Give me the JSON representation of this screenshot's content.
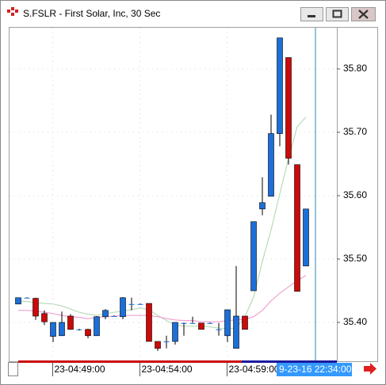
{
  "window_title": "S.FSLR - First Solar, Inc, 30 Sec",
  "chart_data": {
    "type": "candlestick",
    "categories": [
      null,
      null,
      null,
      null,
      "23-04:49:00",
      null,
      null,
      null,
      null,
      null,
      null,
      null,
      null,
      null,
      "23-04:54:00",
      null,
      null,
      null,
      null,
      null,
      null,
      null,
      null,
      null,
      "23-04:59:00",
      null,
      null,
      null,
      null,
      null,
      null,
      null,
      null,
      null
    ],
    "open": [
      35.429,
      35.439,
      35.438,
      35.414,
      35.378,
      35.379,
      35.41,
      35.389,
      35.389,
      35.379,
      35.409,
      35.41,
      35.409,
      35.429,
      35.429,
      35.43,
      35.37,
      35.37,
      35.37,
      35.399,
      35.399,
      35.399,
      35.399,
      35.389,
      35.379,
      35.359,
      35.41,
      35.45,
      35.579,
      35.599,
      35.698,
      35.818,
      35.649,
      35.489
    ],
    "high": [
      35.439,
      35.44,
      35.439,
      35.419,
      35.4,
      35.417,
      35.413,
      35.39,
      35.39,
      35.41,
      35.421,
      35.411,
      35.44,
      35.439,
      35.43,
      35.43,
      35.37,
      35.379,
      35.4,
      35.4,
      35.409,
      35.399,
      35.4,
      35.399,
      35.42,
      35.489,
      35.41,
      35.559,
      35.629,
      35.728,
      35.849,
      35.818,
      35.649,
      35.579
    ],
    "low": [
      35.429,
      35.439,
      35.404,
      35.396,
      35.369,
      35.379,
      35.389,
      35.387,
      35.375,
      35.379,
      35.405,
      35.409,
      35.405,
      35.419,
      35.428,
      35.37,
      35.355,
      35.359,
      35.365,
      35.379,
      35.399,
      35.389,
      35.398,
      35.379,
      35.369,
      35.359,
      35.389,
      35.45,
      35.569,
      35.599,
      35.678,
      35.649,
      35.449,
      35.489
    ],
    "close": [
      35.439,
      35.439,
      35.41,
      35.401,
      35.4,
      35.4,
      35.389,
      35.389,
      35.379,
      35.409,
      35.419,
      35.41,
      35.439,
      35.429,
      35.429,
      35.37,
      35.359,
      35.37,
      35.4,
      35.399,
      35.399,
      35.389,
      35.399,
      35.389,
      35.42,
      35.41,
      35.389,
      35.559,
      35.589,
      35.698,
      35.849,
      35.659,
      35.449,
      35.579
    ],
    "up_color": "#1c6fd8",
    "down_color": "#cc0a0a",
    "lines": [
      {
        "color": "#b9dcb9",
        "values": [
          35.434,
          35.433,
          35.431,
          35.43,
          35.429,
          35.426,
          35.421,
          35.416,
          35.413,
          35.411,
          35.414,
          35.416,
          35.418,
          35.42,
          35.423,
          35.42,
          35.411,
          35.403,
          35.396,
          35.394,
          35.394,
          35.394,
          35.393,
          35.391,
          35.39,
          35.391,
          35.409,
          35.44,
          35.496,
          35.546,
          35.603,
          35.659,
          35.709,
          35.724
        ]
      },
      {
        "color": "#f0a0d0",
        "values": [
          35.419,
          35.419,
          35.418,
          35.416,
          35.414,
          35.411,
          35.409,
          35.408,
          35.406,
          35.408,
          35.409,
          35.41,
          35.411,
          35.411,
          35.411,
          35.411,
          35.409,
          35.406,
          35.404,
          35.403,
          35.403,
          35.401,
          35.401,
          35.401,
          35.403,
          35.404,
          35.405,
          35.409,
          35.419,
          35.434,
          35.446,
          35.456,
          35.466,
          35.474
        ]
      }
    ],
    "ylim": [
      35.34,
      35.865
    ],
    "yticks": [
      {
        "value": 35.4,
        "label": "35.40"
      },
      {
        "value": 35.5,
        "label": "35.50"
      },
      {
        "value": 35.6,
        "label": "35.60"
      },
      {
        "value": 35.7,
        "label": "35.70"
      },
      {
        "value": 35.8,
        "label": "35.80"
      }
    ],
    "grid": true,
    "cursor_label": "9-23-16 22:34:00"
  }
}
